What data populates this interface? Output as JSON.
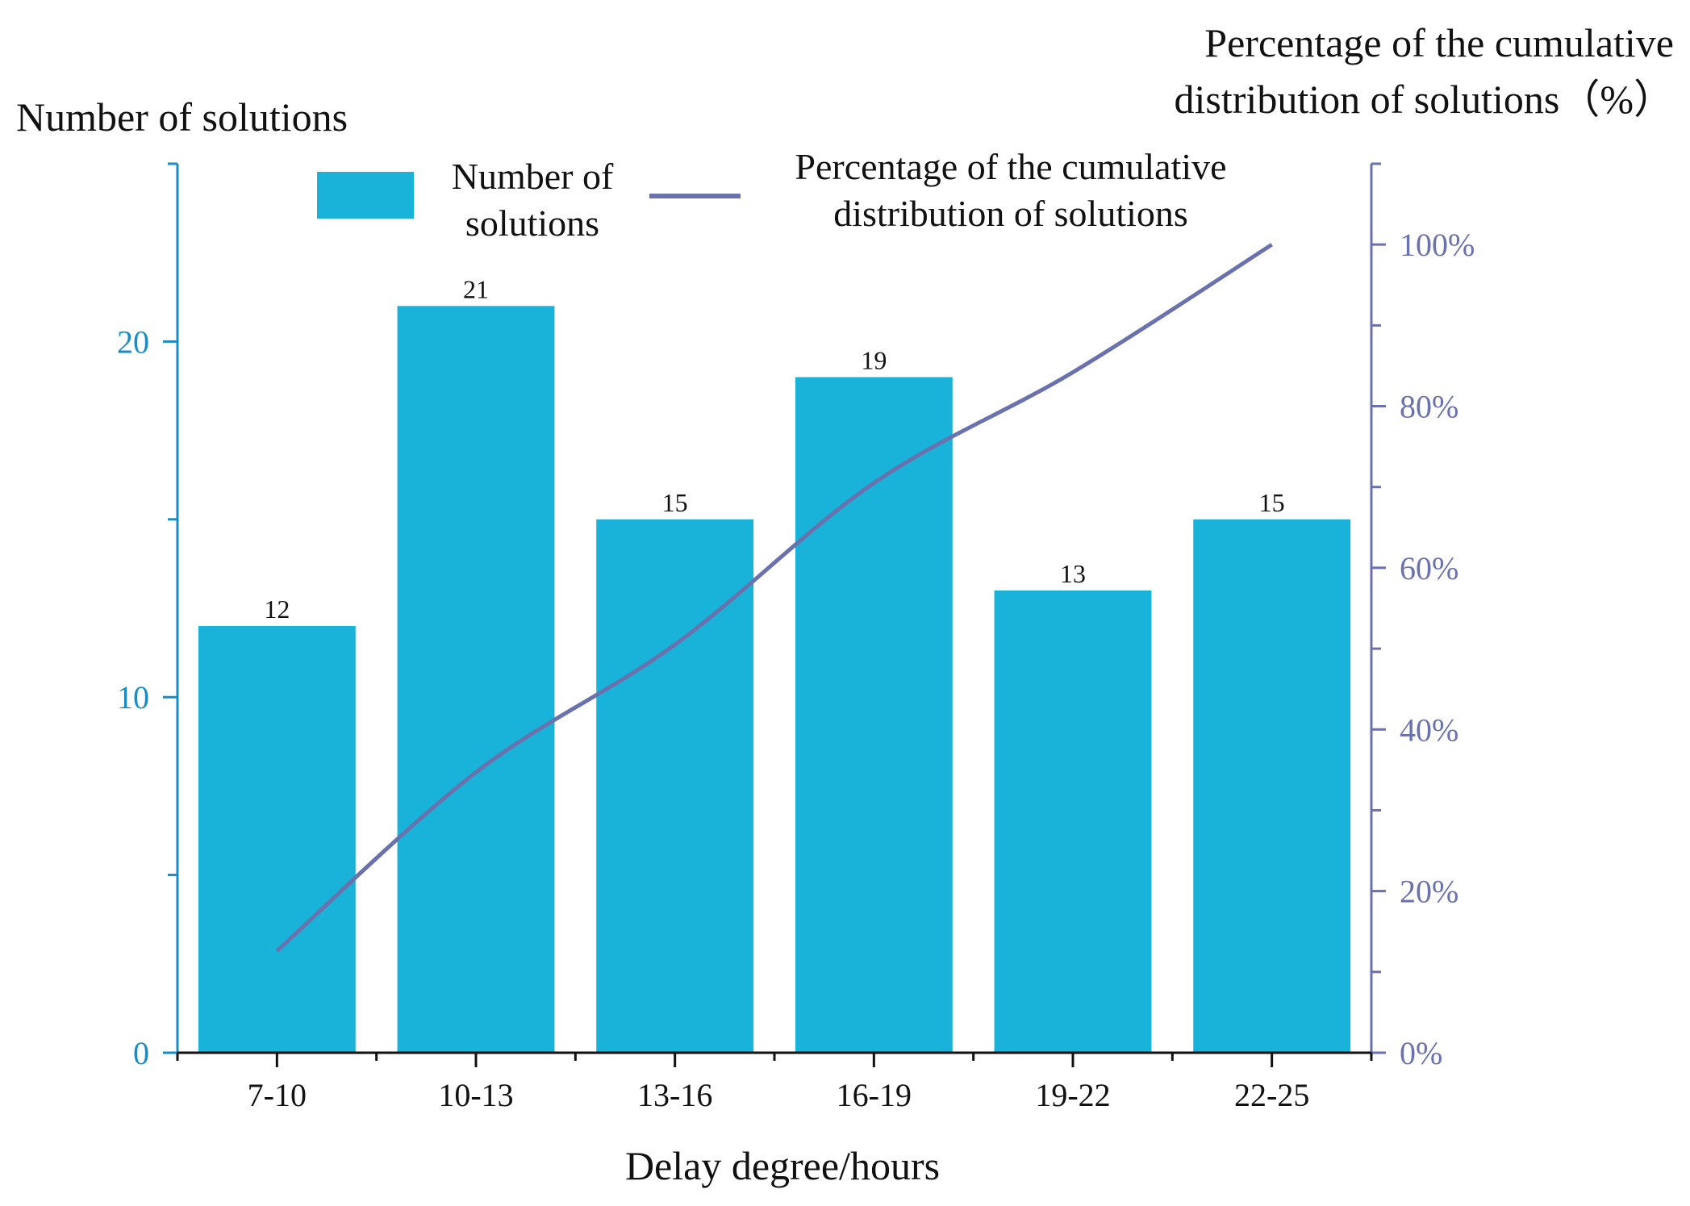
{
  "chart_data": {
    "type": "bar+line",
    "categories": [
      "7-10",
      "10-13",
      "13-16",
      "16-19",
      "19-22",
      "22-25"
    ],
    "series": [
      {
        "name": "Number of solutions",
        "axis": "left",
        "type": "bar",
        "values": [
          12,
          21,
          15,
          19,
          13,
          15
        ],
        "color": "#19b3da"
      },
      {
        "name": "Percentage of the cumulative distribution of solutions",
        "axis": "right",
        "type": "line",
        "values": [
          12.6,
          34.7,
          50.5,
          70.5,
          84.2,
          100
        ],
        "color": "#6a72ae"
      }
    ],
    "xlabel": "Delay degree/hours",
    "ylabel_left": "Number of solutions",
    "ylabel_right": "Percentage of the cumulative distribution of solutions（%）",
    "ylim_left": [
      0,
      25
    ],
    "yticks_left": [
      "0",
      "10",
      "20"
    ],
    "ylim_right": [
      0,
      110
    ],
    "yticks_right": [
      "0%",
      "20%",
      "40%",
      "60%",
      "80%",
      "100%"
    ],
    "legend": {
      "bar_label_line1": "Number of",
      "bar_label_line2": "solutions",
      "line_label_line1": "Percentage of the cumulative",
      "line_label_line2": "distribution of solutions",
      "placement": "top-center"
    },
    "titles": {
      "left_axis_title": "Number of solutions",
      "right_axis_title_line1": "Percentage of the cumulative",
      "right_axis_title_line2": "distribution of solutions（%）"
    },
    "left_axis_color": "#1a8cc4",
    "right_axis_color": "#6a72ae",
    "grid": false
  }
}
